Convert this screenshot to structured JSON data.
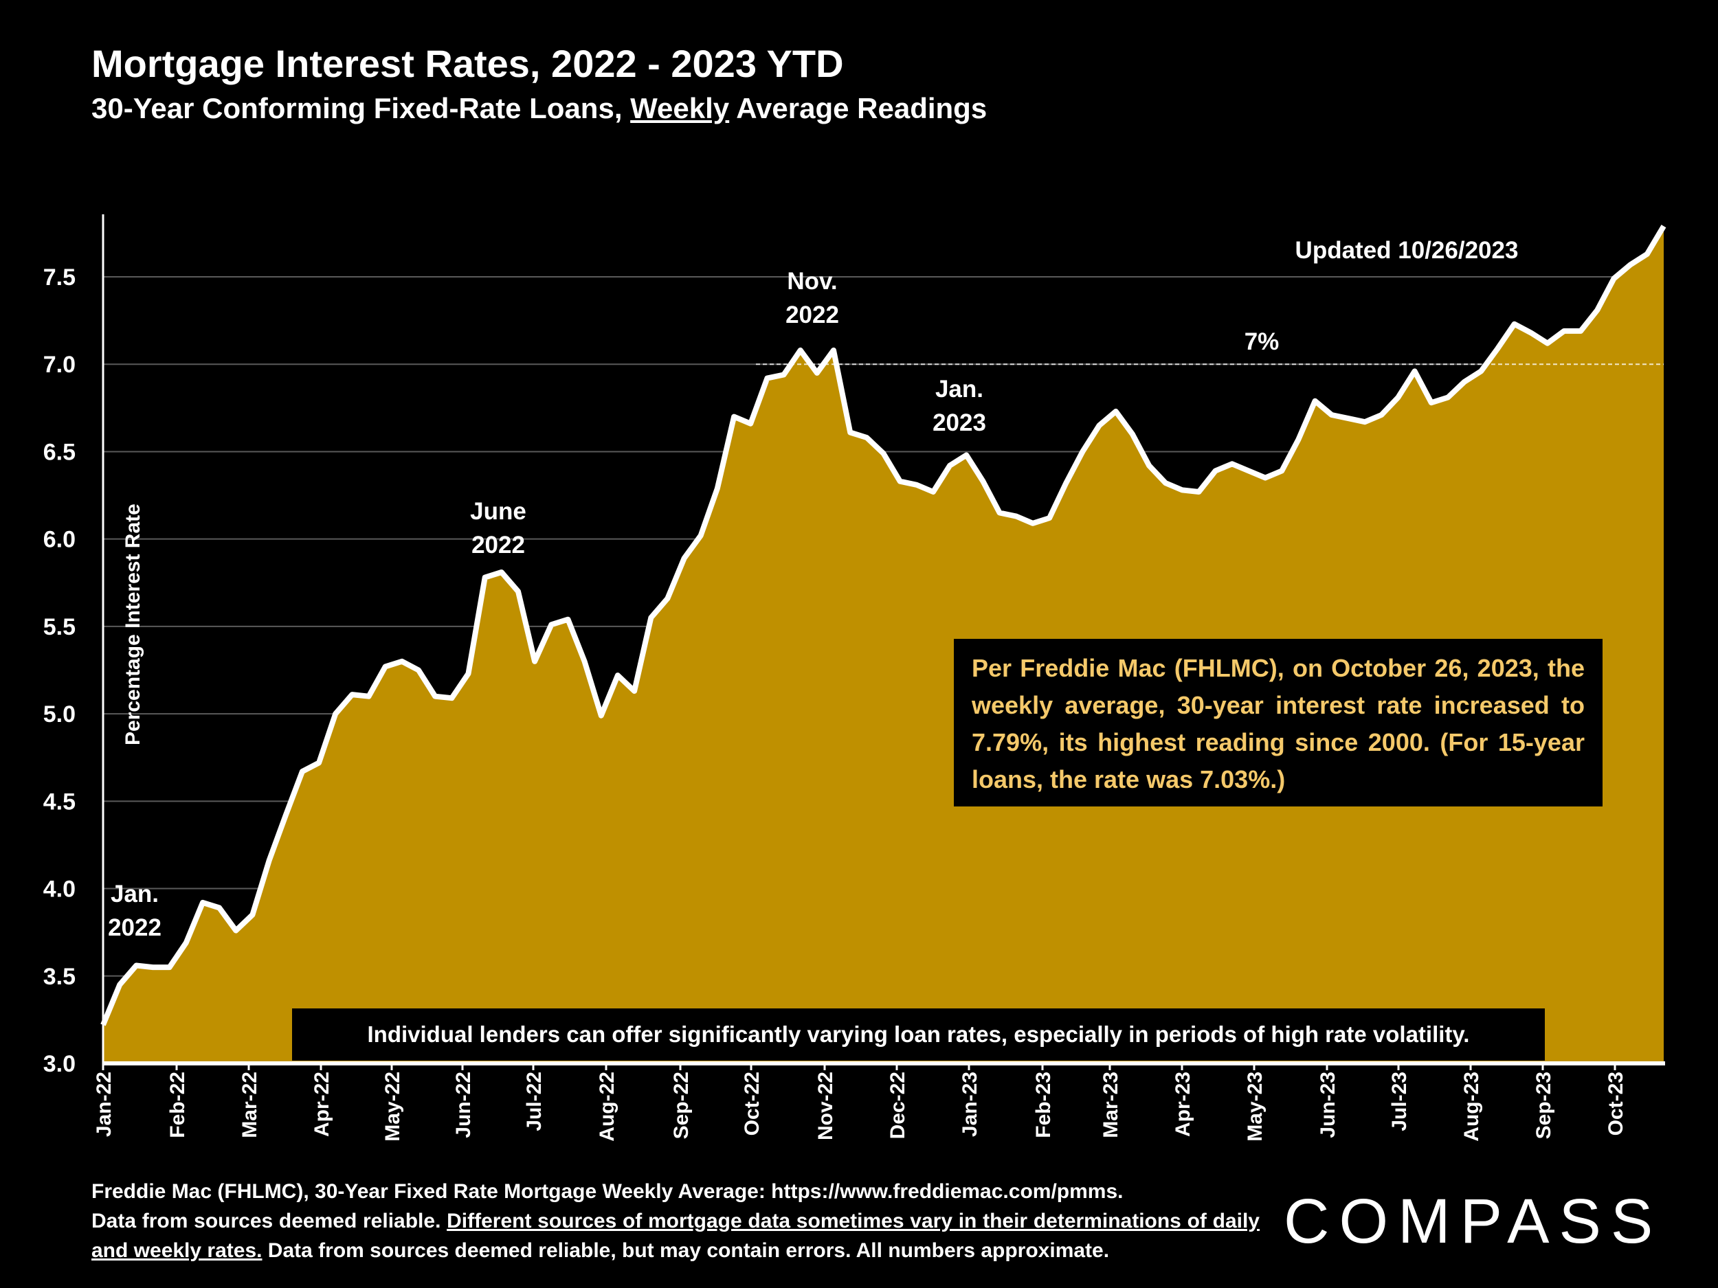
{
  "header": {
    "title": "Mortgage Interest Rates, 2022 - 2023 YTD",
    "subtitle_pre": "30-Year Conforming Fixed-Rate Loans, ",
    "subtitle_underlined": "Weekly",
    "subtitle_post": " Average Readings"
  },
  "colors": {
    "background": "#000000",
    "area_fill": "#BF9000",
    "line": "#FFFFFF",
    "note_text": "#F5C96A"
  },
  "chart_data": {
    "type": "area",
    "ylabel": "Percentage Interest  Rate",
    "ylim": [
      3.0,
      7.75
    ],
    "yticks": [
      "3.0",
      "3.5",
      "4.0",
      "4.5",
      "5.0",
      "5.5",
      "6.0",
      "6.5",
      "7.0",
      "7.5"
    ],
    "grid": true,
    "month_labels": [
      "Jan-22",
      "Feb-22",
      "Mar-22",
      "Apr-22",
      "May-22",
      "Jun-22",
      "Jul-22",
      "Aug-22",
      "Sep-22",
      "Oct-22",
      "Nov-22",
      "Dec-22",
      "Jan-23",
      "Feb-23",
      "Mar-23",
      "Apr-23",
      "May-23",
      "Jun-23",
      "Jul-23",
      "Aug-23",
      "Sep-23",
      "Oct-23"
    ],
    "series": [
      {
        "values": [
          3.22,
          3.45,
          3.56,
          3.55,
          3.55,
          3.69,
          3.92,
          3.89,
          3.76,
          3.85,
          4.16,
          4.42,
          4.67,
          4.72,
          5.0,
          5.11,
          5.1,
          5.27,
          5.3,
          5.25,
          5.1,
          5.09,
          5.23,
          5.78,
          5.81,
          5.7,
          5.3,
          5.51,
          5.54,
          5.3,
          4.99,
          5.22,
          5.13,
          5.55,
          5.66,
          5.89,
          6.02,
          6.29,
          6.7,
          6.66,
          6.92,
          6.94,
          7.08,
          6.95,
          7.08,
          6.61,
          6.58,
          6.49,
          6.33,
          6.31,
          6.27,
          6.42,
          6.48,
          6.33,
          6.15,
          6.13,
          6.09,
          6.12,
          6.32,
          6.5,
          6.65,
          6.73,
          6.6,
          6.42,
          6.32,
          6.28,
          6.27,
          6.39,
          6.43,
          6.39,
          6.35,
          6.39,
          6.57,
          6.79,
          6.71,
          6.69,
          6.67,
          6.71,
          6.81,
          6.96,
          6.78,
          6.81,
          6.9,
          6.96,
          7.09,
          7.23,
          7.18,
          7.12,
          7.19,
          7.19,
          7.31,
          7.49,
          7.57,
          7.63,
          7.79
        ]
      }
    ],
    "annotations": {
      "jan22": [
        "Jan.",
        "2022"
      ],
      "jun22": [
        "June",
        "2022"
      ],
      "nov22": [
        "Nov.",
        "2022"
      ],
      "jan23": [
        "Jan.",
        "2023"
      ],
      "seven": "7%",
      "updated": "Updated 10/26/2023"
    }
  },
  "notes": {
    "box_text": "Per Freddie Mac (FHLMC), on October 26, 2023, the weekly average, 30-year interest rate increased to 7.79%, its highest reading since 2000. (For 15-year loans, the rate was 7.03%.)",
    "bottom_text": "Individual lenders can offer significantly varying loan rates, especially in periods of high rate volatility."
  },
  "footer": {
    "line1": "Freddie Mac (FHLMC), 30-Year Fixed Rate Mortgage Weekly Average:  https://www.freddiemac.com/pmms.",
    "line2_a": "Data from sources deemed reliable. ",
    "line2_b_underlined": "Different sources of mortgage data sometimes vary in their determinations of daily and weekly rates.",
    "line2_c": " Data from sources deemed reliable, but may contain errors. All numbers approximate."
  },
  "logo": {
    "text": "COMPASS"
  }
}
